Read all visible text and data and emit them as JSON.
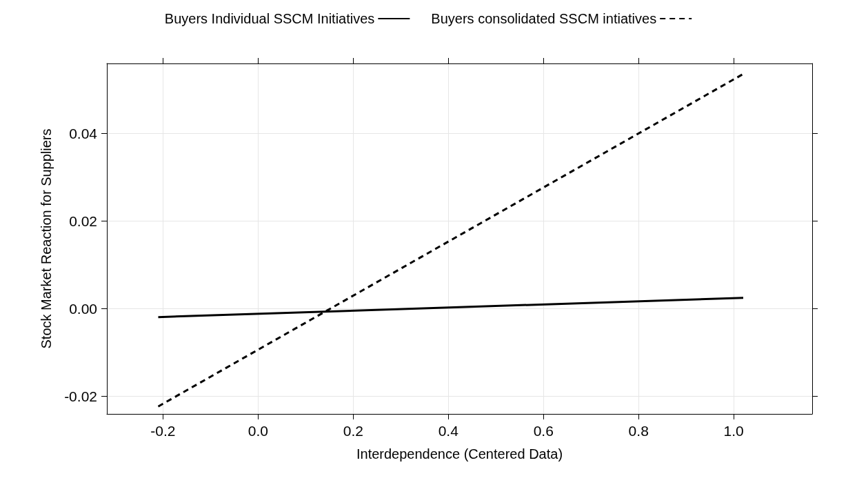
{
  "chart_data": {
    "type": "line",
    "xlabel": "Interdependence (Centered Data)",
    "ylabel": "Stock Market Reaction for Suppliers",
    "xlim": [
      -0.318,
      1.165
    ],
    "xticks": [
      -0.2,
      {
        "value": 0,
        "label": "0.0"
      },
      0.2,
      0.4,
      0.6,
      0.8,
      {
        "value": 1,
        "label": "1.0"
      }
    ],
    "ylim": [
      -0.024,
      0.056
    ],
    "yticks": [
      -0.02,
      {
        "value": 0,
        "label": "0.00"
      },
      0.02,
      0.04
    ],
    "x": [
      -0.21,
      1.02
    ],
    "grid": true,
    "legend": "top",
    "marker": "none",
    "series": [
      {
        "name": "Buyers Individual SSCM Initiatives",
        "color": "#000000",
        "line_style": "solid",
        "values": [
          -0.0019,
          0.0025
        ]
      },
      {
        "name": "Buyers consolidated SSCM intiatives",
        "color": "#000000",
        "line_style": "dashed",
        "values": [
          -0.0223,
          0.0536
        ]
      }
    ]
  }
}
